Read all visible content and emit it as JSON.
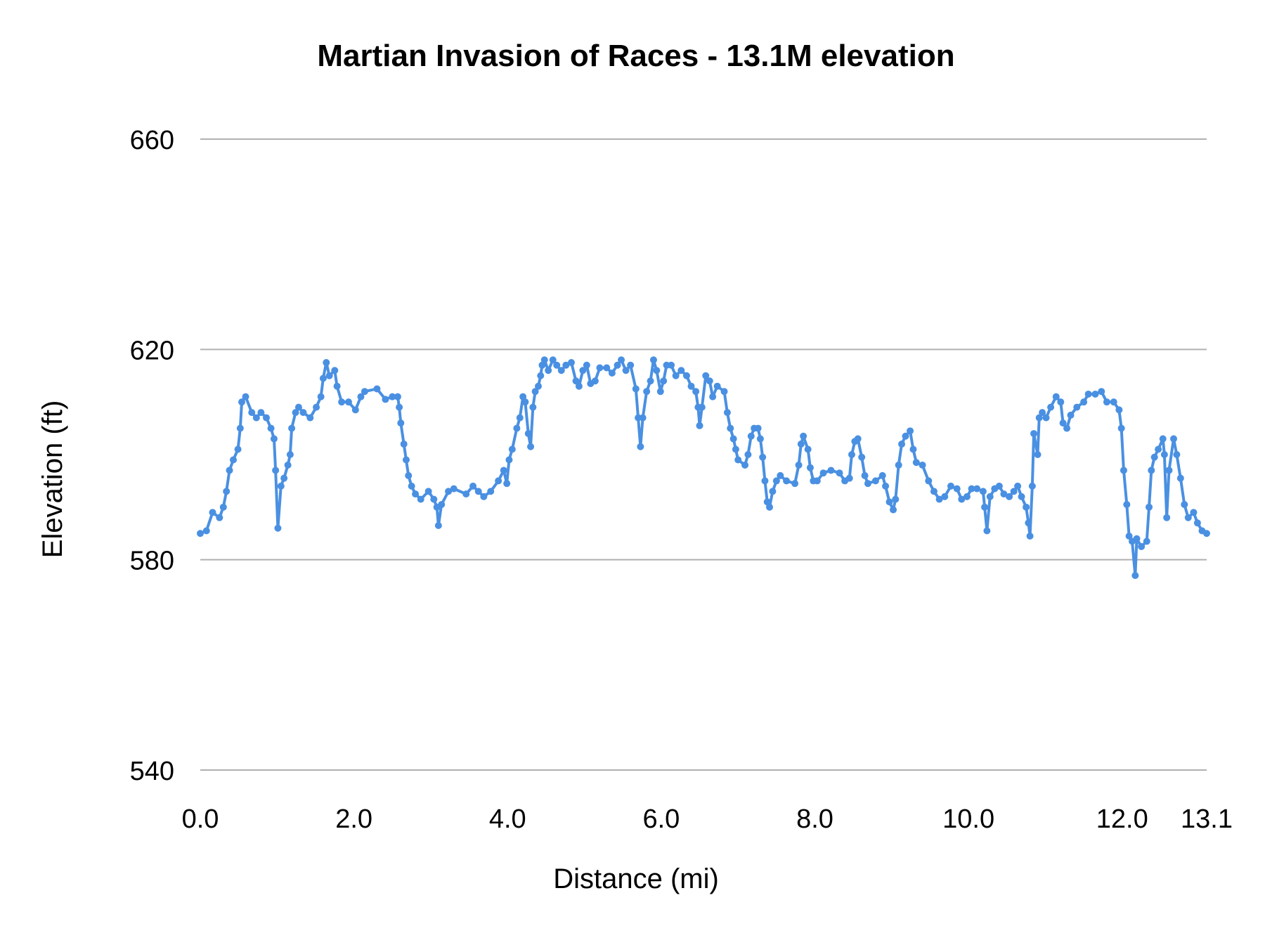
{
  "chart_data": {
    "type": "line",
    "title": "Martian Invasion of Races - 13.1M elevation",
    "xlabel": "Distance (mi)",
    "ylabel": "Elevation (ft)",
    "xlim": [
      0,
      13.1
    ],
    "ylim": [
      540,
      660
    ],
    "x_ticks": [
      0,
      2,
      4,
      6,
      8,
      10,
      12,
      13.1
    ],
    "x_tick_labels": [
      "0.0",
      "2.0",
      "4.0",
      "6.0",
      "8.0",
      "10.0",
      "12.0",
      "13.1"
    ],
    "y_ticks": [
      540,
      580,
      620,
      660
    ],
    "y_tick_labels": [
      "540",
      "580",
      "620",
      "660"
    ],
    "grid": "horizontal",
    "markers": true,
    "colors": {
      "series": "#4a90e2",
      "grid": "#b0b0b0"
    },
    "points": [
      [
        0,
        585
      ],
      [
        0.08,
        585.5
      ],
      [
        0.16,
        589
      ],
      [
        0.25,
        588
      ],
      [
        0.3,
        590
      ],
      [
        0.34,
        593
      ],
      [
        0.38,
        597
      ],
      [
        0.43,
        599
      ],
      [
        0.49,
        601
      ],
      [
        0.52,
        605
      ],
      [
        0.54,
        610
      ],
      [
        0.59,
        611
      ],
      [
        0.67,
        608
      ],
      [
        0.73,
        607
      ],
      [
        0.79,
        608
      ],
      [
        0.86,
        607
      ],
      [
        0.92,
        605
      ],
      [
        0.96,
        603
      ],
      [
        0.98,
        597
      ],
      [
        1.01,
        586
      ],
      [
        1.05,
        594
      ],
      [
        1.09,
        595.5
      ],
      [
        1.14,
        598
      ],
      [
        1.17,
        600
      ],
      [
        1.19,
        605
      ],
      [
        1.24,
        608
      ],
      [
        1.28,
        609
      ],
      [
        1.34,
        608
      ],
      [
        1.43,
        607
      ],
      [
        1.51,
        609
      ],
      [
        1.57,
        611
      ],
      [
        1.6,
        614.5
      ],
      [
        1.64,
        617.5
      ],
      [
        1.68,
        615
      ],
      [
        1.75,
        616
      ],
      [
        1.78,
        613
      ],
      [
        1.84,
        610
      ],
      [
        1.93,
        610
      ],
      [
        2.02,
        608.5
      ],
      [
        2.09,
        611
      ],
      [
        2.14,
        612
      ],
      [
        2.3,
        612.5
      ],
      [
        2.41,
        610.5
      ],
      [
        2.5,
        611
      ],
      [
        2.57,
        611
      ],
      [
        2.59,
        609
      ],
      [
        2.61,
        606
      ],
      [
        2.65,
        602
      ],
      [
        2.68,
        599
      ],
      [
        2.71,
        596
      ],
      [
        2.75,
        594
      ],
      [
        2.8,
        592.5
      ],
      [
        2.87,
        591.5
      ],
      [
        2.97,
        593
      ],
      [
        3.04,
        591.5
      ],
      [
        3.08,
        590
      ],
      [
        3.1,
        586.5
      ],
      [
        3.14,
        590.5
      ],
      [
        3.23,
        593
      ],
      [
        3.3,
        593.5
      ],
      [
        3.46,
        592.5
      ],
      [
        3.55,
        594
      ],
      [
        3.62,
        593
      ],
      [
        3.69,
        592
      ],
      [
        3.78,
        593
      ],
      [
        3.88,
        595
      ],
      [
        3.95,
        597
      ],
      [
        3.99,
        594.5
      ],
      [
        4.02,
        599
      ],
      [
        4.06,
        601
      ],
      [
        4.12,
        605
      ],
      [
        4.16,
        607
      ],
      [
        4.2,
        611
      ],
      [
        4.23,
        610
      ],
      [
        4.27,
        604
      ],
      [
        4.3,
        601.5
      ],
      [
        4.33,
        609
      ],
      [
        4.36,
        612
      ],
      [
        4.4,
        613
      ],
      [
        4.43,
        615
      ],
      [
        4.45,
        617
      ],
      [
        4.48,
        618
      ],
      [
        4.53,
        616
      ],
      [
        4.59,
        618
      ],
      [
        4.64,
        617
      ],
      [
        4.7,
        616
      ],
      [
        4.76,
        617
      ],
      [
        4.83,
        617.5
      ],
      [
        4.89,
        614
      ],
      [
        4.93,
        613
      ],
      [
        4.98,
        616
      ],
      [
        5.03,
        617
      ],
      [
        5.08,
        613.5
      ],
      [
        5.14,
        614
      ],
      [
        5.2,
        616.5
      ],
      [
        5.29,
        616.5
      ],
      [
        5.36,
        615.5
      ],
      [
        5.43,
        617
      ],
      [
        5.48,
        618
      ],
      [
        5.54,
        616
      ],
      [
        5.6,
        617
      ],
      [
        5.67,
        612.5
      ],
      [
        5.7,
        607
      ],
      [
        5.73,
        601.5
      ],
      [
        5.76,
        607
      ],
      [
        5.81,
        612
      ],
      [
        5.86,
        614
      ],
      [
        5.9,
        618
      ],
      [
        5.94,
        616
      ],
      [
        5.99,
        612
      ],
      [
        6.03,
        614
      ],
      [
        6.07,
        617
      ],
      [
        6.13,
        617
      ],
      [
        6.19,
        615
      ],
      [
        6.26,
        616
      ],
      [
        6.33,
        615
      ],
      [
        6.39,
        613
      ],
      [
        6.45,
        612
      ],
      [
        6.48,
        609
      ],
      [
        6.5,
        605.5
      ],
      [
        6.53,
        609
      ],
      [
        6.58,
        615
      ],
      [
        6.63,
        614
      ],
      [
        6.67,
        611
      ],
      [
        6.73,
        613
      ],
      [
        6.82,
        612
      ],
      [
        6.86,
        608
      ],
      [
        6.9,
        605
      ],
      [
        6.94,
        603
      ],
      [
        6.97,
        601
      ],
      [
        7.0,
        599
      ],
      [
        7.09,
        598
      ],
      [
        7.13,
        600
      ],
      [
        7.17,
        603.5
      ],
      [
        7.21,
        605
      ],
      [
        7.26,
        605
      ],
      [
        7.29,
        603
      ],
      [
        7.32,
        599.5
      ],
      [
        7.35,
        595
      ],
      [
        7.38,
        591
      ],
      [
        7.41,
        590
      ],
      [
        7.45,
        593
      ],
      [
        7.5,
        595
      ],
      [
        7.55,
        596
      ],
      [
        7.63,
        595
      ],
      [
        7.74,
        594.5
      ],
      [
        7.79,
        598
      ],
      [
        7.82,
        602
      ],
      [
        7.85,
        603.5
      ],
      [
        7.91,
        601
      ],
      [
        7.94,
        597.5
      ],
      [
        7.98,
        595
      ],
      [
        8.03,
        595
      ],
      [
        8.11,
        596.5
      ],
      [
        8.21,
        597
      ],
      [
        8.32,
        596.5
      ],
      [
        8.39,
        595
      ],
      [
        8.45,
        595.5
      ],
      [
        8.48,
        600
      ],
      [
        8.52,
        602.5
      ],
      [
        8.56,
        603
      ],
      [
        8.61,
        599.5
      ],
      [
        8.65,
        596
      ],
      [
        8.69,
        594.5
      ],
      [
        8.79,
        595
      ],
      [
        8.88,
        596
      ],
      [
        8.92,
        594
      ],
      [
        8.97,
        591
      ],
      [
        9.02,
        589.5
      ],
      [
        9.05,
        591.5
      ],
      [
        9.09,
        598
      ],
      [
        9.13,
        602
      ],
      [
        9.18,
        603.5
      ],
      [
        9.24,
        604.5
      ],
      [
        9.28,
        601
      ],
      [
        9.32,
        598.5
      ],
      [
        9.4,
        598
      ],
      [
        9.48,
        595
      ],
      [
        9.55,
        593
      ],
      [
        9.62,
        591.5
      ],
      [
        9.69,
        592
      ],
      [
        9.77,
        594
      ],
      [
        9.85,
        593.5
      ],
      [
        9.91,
        591.5
      ],
      [
        9.98,
        592
      ],
      [
        10.04,
        593.5
      ],
      [
        10.11,
        593.5
      ],
      [
        10.19,
        593
      ],
      [
        10.21,
        590
      ],
      [
        10.24,
        585.5
      ],
      [
        10.28,
        592
      ],
      [
        10.34,
        593.5
      ],
      [
        10.4,
        594
      ],
      [
        10.46,
        592.5
      ],
      [
        10.53,
        592
      ],
      [
        10.59,
        593
      ],
      [
        10.64,
        594
      ],
      [
        10.69,
        592
      ],
      [
        10.75,
        590
      ],
      [
        10.78,
        587
      ],
      [
        10.8,
        584.5
      ],
      [
        10.83,
        594
      ],
      [
        10.85,
        604
      ],
      [
        10.9,
        600
      ],
      [
        10.92,
        607
      ],
      [
        10.96,
        608
      ],
      [
        11.01,
        607
      ],
      [
        11.07,
        609
      ],
      [
        11.14,
        611
      ],
      [
        11.2,
        610
      ],
      [
        11.23,
        606
      ],
      [
        11.28,
        605
      ],
      [
        11.33,
        607.5
      ],
      [
        11.41,
        609
      ],
      [
        11.5,
        610
      ],
      [
        11.56,
        611.5
      ],
      [
        11.65,
        611.5
      ],
      [
        11.73,
        612
      ],
      [
        11.8,
        610
      ],
      [
        11.89,
        610
      ],
      [
        11.96,
        608.5
      ],
      [
        11.99,
        605
      ],
      [
        12.02,
        597
      ],
      [
        12.06,
        590.5
      ],
      [
        12.09,
        584.5
      ],
      [
        12.13,
        583.5
      ],
      [
        12.17,
        577
      ],
      [
        12.19,
        584
      ],
      [
        12.25,
        582.5
      ],
      [
        12.32,
        583.5
      ],
      [
        12.35,
        590
      ],
      [
        12.38,
        597
      ],
      [
        12.42,
        599.5
      ],
      [
        12.47,
        601
      ],
      [
        12.53,
        603
      ],
      [
        12.55,
        600
      ],
      [
        12.58,
        588
      ],
      [
        12.61,
        597
      ],
      [
        12.67,
        603
      ],
      [
        12.71,
        600
      ],
      [
        12.76,
        595.5
      ],
      [
        12.81,
        590.5
      ],
      [
        12.86,
        588
      ],
      [
        12.93,
        589
      ],
      [
        12.98,
        587
      ],
      [
        13.04,
        585.5
      ],
      [
        13.1,
        585
      ]
    ]
  }
}
